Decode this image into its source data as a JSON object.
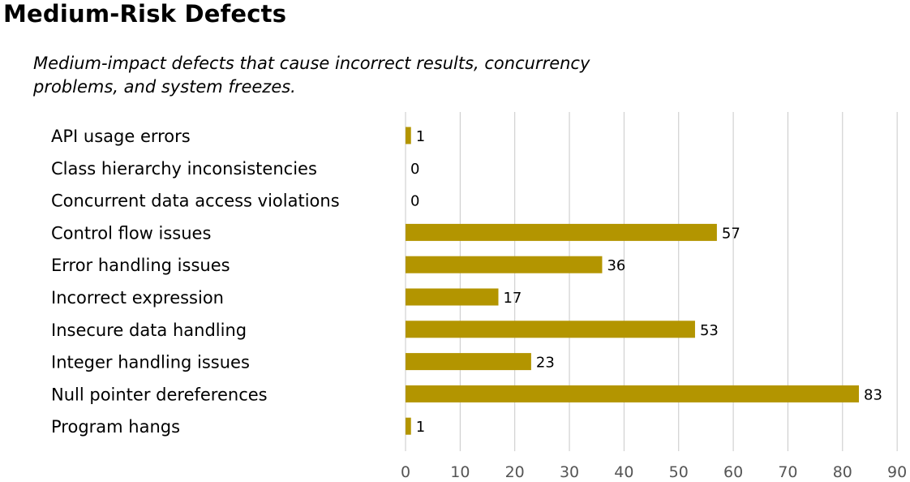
{
  "page": {
    "title": "Medium-Risk Defects",
    "subtitle": "Medium-impact defects that cause incorrect results, concurrency problems, and system freezes."
  },
  "chart_data": {
    "type": "bar",
    "orientation": "horizontal",
    "categories": [
      "API usage errors",
      "Class hierarchy inconsistencies",
      "Concurrent data access violations",
      "Control flow issues",
      "Error handling issues",
      "Incorrect expression",
      "Insecure data handling",
      "Integer handling issues",
      "Null pointer dereferences",
      "Program hangs"
    ],
    "values": [
      1,
      0,
      0,
      57,
      36,
      17,
      53,
      23,
      83,
      1
    ],
    "xlim": [
      0,
      90
    ],
    "xticks": [
      0,
      10,
      20,
      30,
      40,
      50,
      60,
      70,
      80,
      90
    ],
    "grid": "vertical",
    "bar_color": "#b39500",
    "grid_color": "#c8c8c8",
    "legend": "none",
    "data_labels": true
  }
}
